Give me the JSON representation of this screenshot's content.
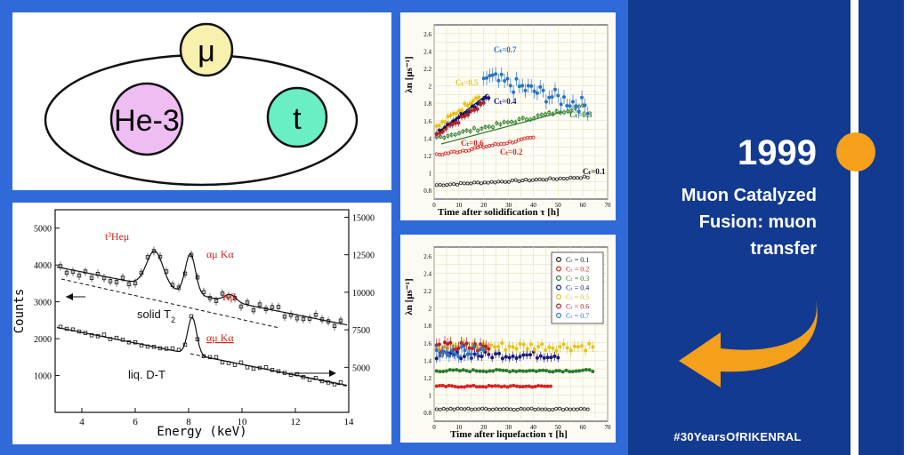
{
  "diagram": {
    "muon_label": "μ",
    "helium_label": "He-3",
    "triton_label": "t",
    "colors": {
      "muon": "#f7f1ad",
      "helium": "#eebdf2",
      "triton": "#69eec5"
    }
  },
  "spectrum": {
    "xlabel": "Energy (keV)",
    "ylabel": "Counts",
    "x_ticks": [
      "4",
      "6",
      "8",
      "10",
      "12",
      "14"
    ],
    "y_left_ticks": [
      "1000",
      "2000",
      "3000",
      "4000",
      "5000"
    ],
    "y_right_ticks": [
      "5000",
      "7500",
      "10000",
      "12500",
      "15000"
    ],
    "annotations": {
      "t3hemu": "t³Heμ",
      "amu_ka_top": "αμ Kα",
      "kbeta": "Kβ",
      "solid": "solid T",
      "solid_sub": "2",
      "amu_ka_bottom": "αμ Kα",
      "liquid": "liq. D-T"
    }
  },
  "solid_plot": {
    "ylabel": "λn [μs⁻¹]",
    "xlabel": "Time after solidification τ [h]",
    "x_ticks": [
      "0",
      "10",
      "20",
      "30",
      "40",
      "50",
      "60",
      "70"
    ],
    "y_ticks": [
      "0.8",
      "1",
      "1.2",
      "1.4",
      "1.6",
      "1.8",
      "2",
      "2.2",
      "2.4",
      "2.6"
    ],
    "labels": {
      "c07": "Cₜ=0.7",
      "c05": "Cₜ=0.5",
      "c04": "Cₜ=0.4",
      "c03": "Cₜ=0.3",
      "c06": "Cₜ=0.6",
      "c02": "Cₜ=0.2",
      "c01": "Cₜ=0.1"
    }
  },
  "liquid_plot": {
    "ylabel": "λn [μs⁻¹]",
    "xlabel": "Time after liquefaction τ [h]",
    "x_ticks": [
      "0",
      "10",
      "20",
      "30",
      "40",
      "50",
      "60",
      "70"
    ],
    "y_ticks": [
      "0.8",
      "1",
      "1.2",
      "1.4",
      "1.6",
      "1.8",
      "2",
      "2.2",
      "2.4",
      "2.6"
    ],
    "legend": [
      {
        "label": "Cₜ = 0.1",
        "color": "#222222"
      },
      {
        "label": "Cₜ = 0.2",
        "color": "#d9231f"
      },
      {
        "label": "Cₜ = 0.3",
        "color": "#2a7a2a"
      },
      {
        "label": "Cₜ = 0.4",
        "color": "#1a1a80"
      },
      {
        "label": "Cₜ = 0.5",
        "color": "#e6c21a"
      },
      {
        "label": "Cₜ = 0.6",
        "color": "#b3232a"
      },
      {
        "label": "Cₜ = 0.7",
        "color": "#2a73c9"
      }
    ]
  },
  "timeline": {
    "year": "1999",
    "caption_lines": [
      "Muon Catalyzed",
      "Fusion: muon",
      "transfer"
    ],
    "hashtag": "#30YearsOfRIKENRAL",
    "accent": "#f5a01a",
    "sidebar_bg": "#133a91",
    "page_bg": "#2f6ad8"
  }
}
